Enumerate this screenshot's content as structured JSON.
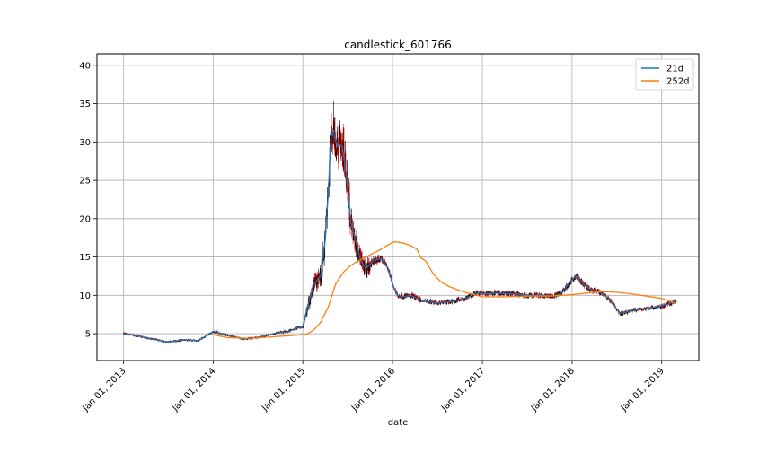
{
  "chart_data": {
    "type": "line",
    "title": "candlestick_601766",
    "xlabel": "date",
    "ylabel": "",
    "grid": true,
    "legend_position": "top-right",
    "xlim": [
      "2012-09-15",
      "2019-06-01"
    ],
    "ylim": [
      1.5,
      41.5
    ],
    "x_ticks": [
      "Jan 01, 2013",
      "Jan 01, 2014",
      "Jan 01, 2015",
      "Jan 01, 2016",
      "Jan 01, 2017",
      "Jan 01, 2018",
      "Jan 01, 2019"
    ],
    "x_tick_dates": [
      "2013-01-01",
      "2014-01-01",
      "2015-01-01",
      "2016-01-01",
      "2017-01-01",
      "2018-01-01",
      "2019-01-01"
    ],
    "y_ticks": [
      5,
      10,
      15,
      20,
      25,
      30,
      35,
      40
    ],
    "colors": {
      "up": "#000000",
      "down": "#cc0000",
      "ma21": "#1f77b4",
      "ma252": "#ff7f0e"
    },
    "series": [
      {
        "name": "21d",
        "x": [
          "2013-01-01",
          "2013-03-01",
          "2013-05-01",
          "2013-07-01",
          "2013-09-01",
          "2013-11-01",
          "2014-01-01",
          "2014-03-01",
          "2014-05-01",
          "2014-07-01",
          "2014-09-01",
          "2014-11-01",
          "2014-12-15",
          "2015-01-01",
          "2015-01-20",
          "2015-02-15",
          "2015-03-15",
          "2015-03-31",
          "2015-04-15",
          "2015-04-25",
          "2015-05-05",
          "2015-05-20",
          "2015-06-10",
          "2015-06-30",
          "2015-07-15",
          "2015-08-05",
          "2015-08-25",
          "2015-09-15",
          "2015-10-15",
          "2015-11-15",
          "2015-12-15",
          "2016-01-01",
          "2016-01-20",
          "2016-02-15",
          "2016-03-15",
          "2016-05-01",
          "2016-07-01",
          "2016-09-01",
          "2016-11-01",
          "2016-12-01",
          "2017-01-01",
          "2017-03-01",
          "2017-05-01",
          "2017-07-01",
          "2017-09-01",
          "2017-10-15",
          "2017-11-15",
          "2018-01-01",
          "2018-01-20",
          "2018-02-15",
          "2018-03-15",
          "2018-04-15",
          "2018-05-15",
          "2018-06-15",
          "2018-07-15",
          "2018-09-01",
          "2018-11-01",
          "2019-01-01",
          "2019-02-01",
          "2019-03-01"
        ],
        "values": [
          5.0,
          4.7,
          4.3,
          3.9,
          4.2,
          4.1,
          5.3,
          4.8,
          4.3,
          4.5,
          5.0,
          5.3,
          5.8,
          5.9,
          8.5,
          11.5,
          12.5,
          16.5,
          23.5,
          30.5,
          31.5,
          29.5,
          29.5,
          25.0,
          19.5,
          17.0,
          14.5,
          13.5,
          14.5,
          14.8,
          13.5,
          11.5,
          10.0,
          9.8,
          10.0,
          9.3,
          9.0,
          9.2,
          9.7,
          10.3,
          10.2,
          10.3,
          10.2,
          10.0,
          10.0,
          9.9,
          10.2,
          12.0,
          12.5,
          11.5,
          10.8,
          10.5,
          10.0,
          9.0,
          7.6,
          8.0,
          8.3,
          8.6,
          8.9,
          9.3
        ]
      },
      {
        "name": "252d",
        "x": [
          "2013-12-25",
          "2014-03-01",
          "2014-06-01",
          "2014-09-01",
          "2014-12-01",
          "2015-01-15",
          "2015-02-15",
          "2015-03-15",
          "2015-04-15",
          "2015-05-15",
          "2015-06-15",
          "2015-07-15",
          "2015-08-15",
          "2015-09-15",
          "2015-10-15",
          "2015-11-15",
          "2015-12-15",
          "2016-01-10",
          "2016-02-15",
          "2016-03-15",
          "2016-04-10",
          "2016-04-25",
          "2016-05-15",
          "2016-06-15",
          "2016-07-15",
          "2016-08-15",
          "2016-09-15",
          "2016-11-01",
          "2017-01-01",
          "2017-04-01",
          "2017-07-01",
          "2017-10-01",
          "2018-01-01",
          "2018-03-01",
          "2018-05-01",
          "2018-07-01",
          "2018-09-01",
          "2018-11-01",
          "2019-01-01",
          "2019-03-01"
        ],
        "values": [
          4.9,
          4.5,
          4.4,
          4.6,
          4.8,
          4.9,
          5.5,
          6.5,
          8.5,
          11.5,
          13.0,
          13.9,
          14.5,
          15.0,
          15.5,
          16.0,
          16.6,
          17.0,
          16.8,
          16.5,
          16.0,
          14.9,
          14.5,
          12.8,
          11.8,
          11.2,
          10.8,
          10.3,
          9.8,
          9.8,
          9.9,
          9.9,
          10.1,
          10.3,
          10.5,
          10.4,
          10.2,
          9.9,
          9.6,
          9.0
        ]
      }
    ],
    "candlestick_note": "daily OHLC candles; black = up, red = down"
  }
}
